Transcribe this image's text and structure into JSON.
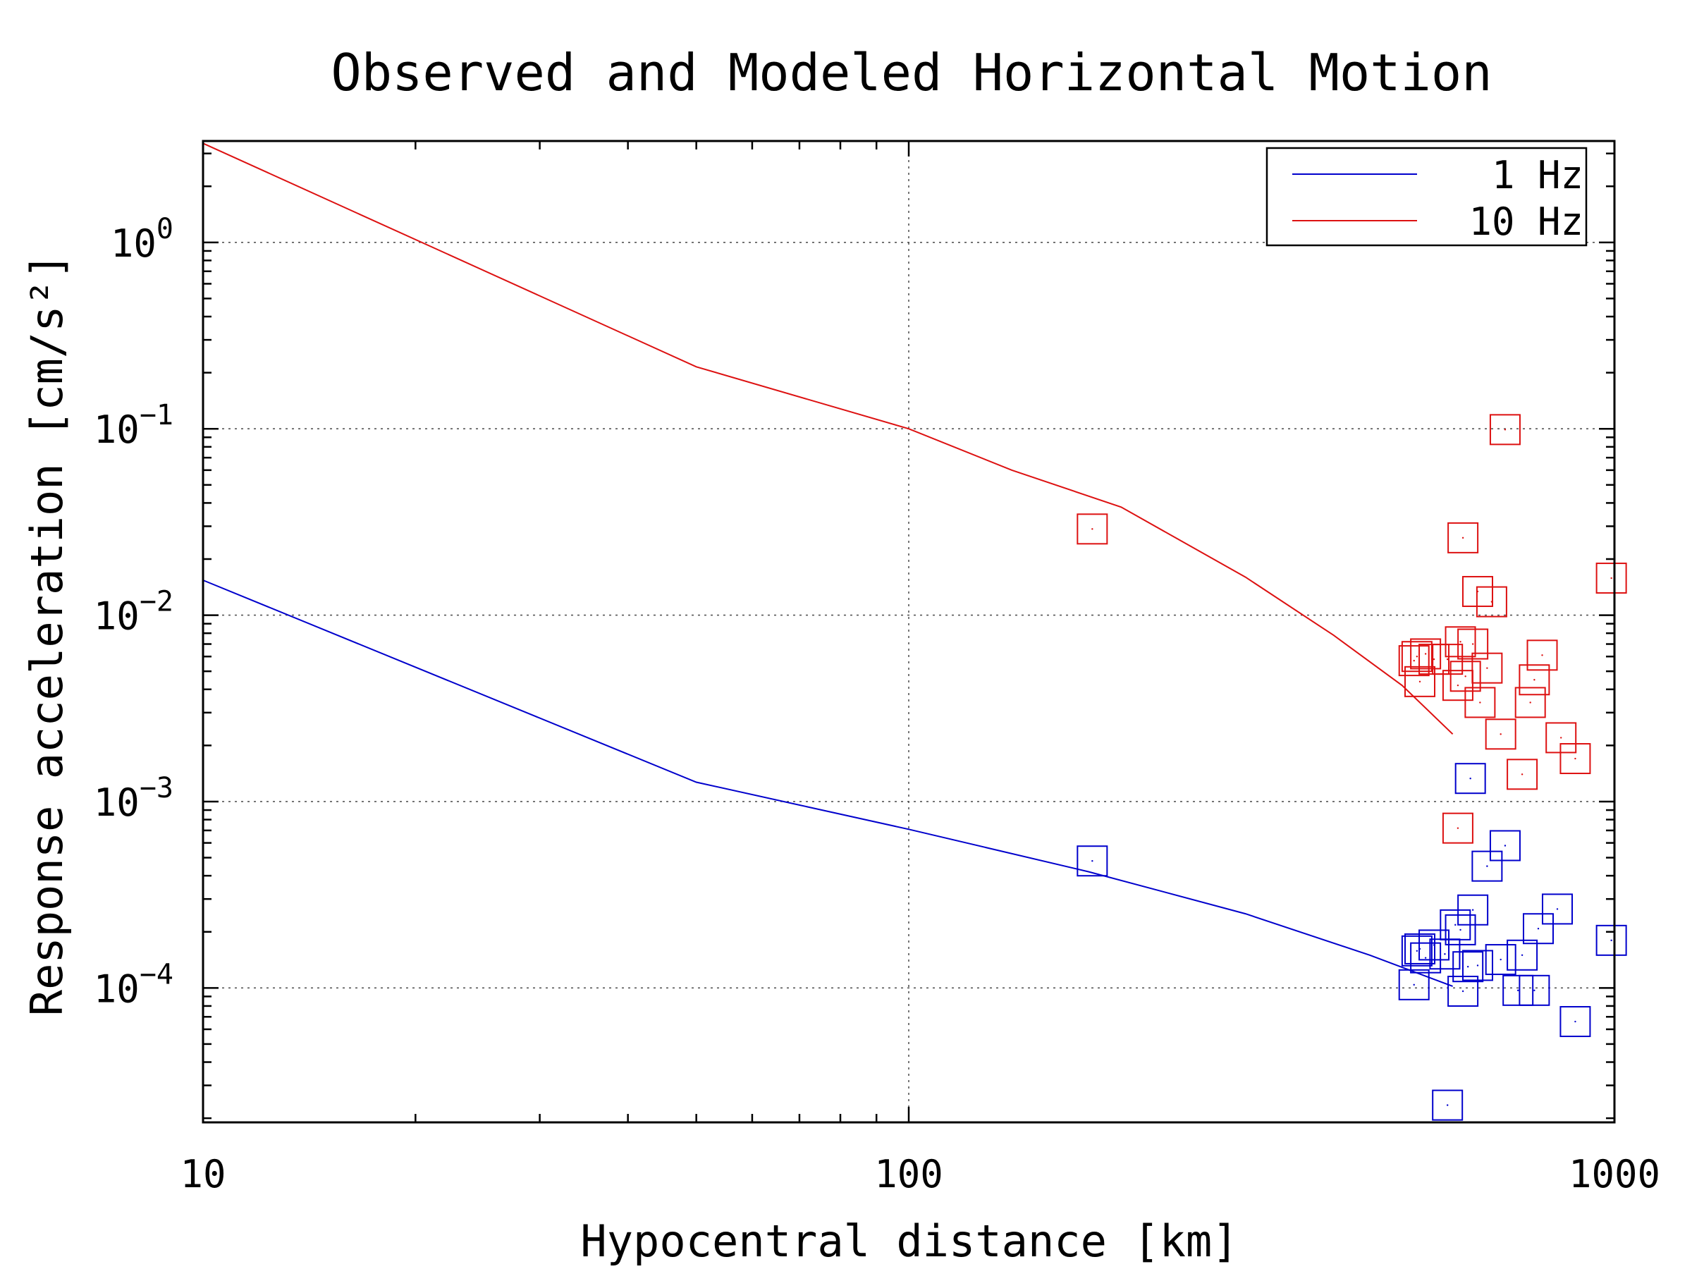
{
  "chart_data": {
    "type": "scatter",
    "title": "Observed and Modeled Horizontal Motion",
    "xlabel": "Hypocentral distance [km]",
    "ylabel": "Response acceleration [cm/s²]",
    "x_scale": "log",
    "y_scale": "log",
    "xlim": [
      10,
      1000
    ],
    "ylim": [
      1.9e-05,
      3.5
    ],
    "x_ticks": [
      {
        "value": 10,
        "label": "10"
      },
      {
        "value": 100,
        "label": "100"
      },
      {
        "value": 1000,
        "label": "1000"
      }
    ],
    "y_ticks": [
      {
        "value": 1,
        "base": "10",
        "exp": "0"
      },
      {
        "value": 0.1,
        "base": "10",
        "exp": "−1"
      },
      {
        "value": 0.01,
        "base": "10",
        "exp": "−2"
      },
      {
        "value": 0.001,
        "base": "10",
        "exp": "−3"
      },
      {
        "value": 0.0001,
        "base": "10",
        "exp": "−4"
      }
    ],
    "grid": true,
    "legend_position": "top-right",
    "series": [
      {
        "name": "1 Hz",
        "color": "#0000cc",
        "model": [
          [
            10,
            0.0154
          ],
          [
            50,
            0.00127
          ],
          [
            100,
            0.00071
          ],
          [
            180,
            0.00042
          ],
          [
            300,
            0.00025
          ],
          [
            450,
            0.00015
          ],
          [
            590,
            0.000102
          ]
        ],
        "observed": [
          [
            182,
            0.00048
          ],
          [
            520,
            0.000104
          ],
          [
            525,
            0.000158
          ],
          [
            530,
            0.000162
          ],
          [
            540,
            0.000145
          ],
          [
            555,
            0.00017
          ],
          [
            575,
            0.000152
          ],
          [
            595,
            0.000218
          ],
          [
            605,
            0.000205
          ],
          [
            610,
            9.6e-05
          ],
          [
            620,
            0.00013
          ],
          [
            625,
            0.00133
          ],
          [
            630,
            0.000262
          ],
          [
            640,
            0.000132
          ],
          [
            660,
            0.00045
          ],
          [
            690,
            0.000142
          ],
          [
            700,
            0.00058
          ],
          [
            730,
            9.7e-05
          ],
          [
            740,
            0.00015
          ],
          [
            770,
            9.7e-05
          ],
          [
            780,
            0.000208
          ],
          [
            830,
            0.000265
          ],
          [
            880,
            6.6e-05
          ],
          [
            990,
            0.00018
          ],
          [
            580,
            2.35e-05
          ]
        ]
      },
      {
        "name": "10 Hz",
        "color": "#dd1111",
        "model": [
          [
            10,
            3.4
          ],
          [
            50,
            0.215
          ],
          [
            100,
            0.1
          ],
          [
            140,
            0.06
          ],
          [
            200,
            0.038
          ],
          [
            300,
            0.016
          ],
          [
            400,
            0.0078
          ],
          [
            500,
            0.0042
          ],
          [
            590,
            0.0023
          ]
        ],
        "observed": [
          [
            182,
            0.029
          ],
          [
            520,
            0.0057
          ],
          [
            525,
            0.006
          ],
          [
            530,
            0.0044
          ],
          [
            540,
            0.0062
          ],
          [
            555,
            0.0058
          ],
          [
            580,
            0.0058
          ],
          [
            600,
            0.0042
          ],
          [
            605,
            0.0072
          ],
          [
            610,
            0.026
          ],
          [
            615,
            0.0047
          ],
          [
            630,
            0.007
          ],
          [
            640,
            0.0134
          ],
          [
            645,
            0.0034
          ],
          [
            660,
            0.0052
          ],
          [
            670,
            0.0118
          ],
          [
            690,
            0.0023
          ],
          [
            700,
            0.099
          ],
          [
            740,
            0.0014
          ],
          [
            760,
            0.0034
          ],
          [
            770,
            0.0045
          ],
          [
            790,
            0.0061
          ],
          [
            840,
            0.0022
          ],
          [
            880,
            0.0017
          ],
          [
            990,
            0.0158
          ],
          [
            600,
            0.00072
          ]
        ]
      }
    ]
  }
}
